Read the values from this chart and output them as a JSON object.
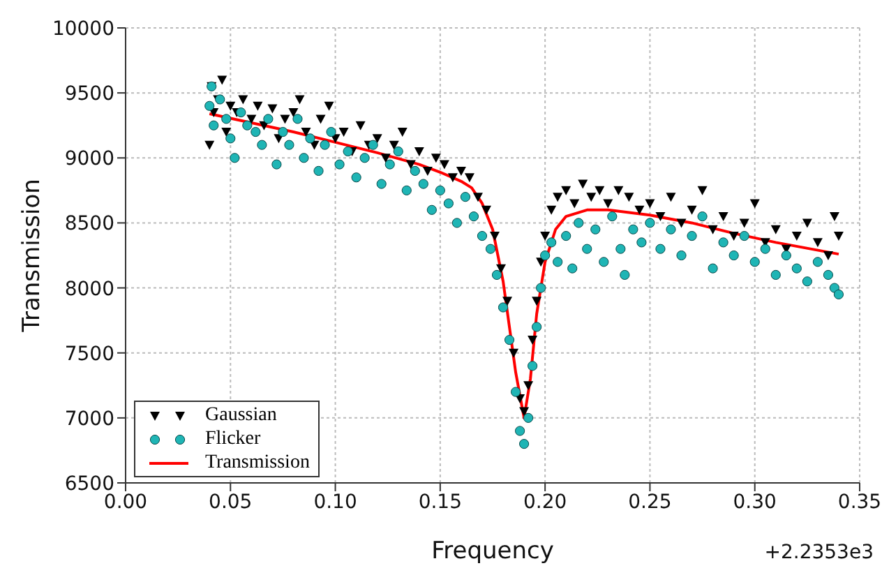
{
  "chart_data": {
    "type": "scatter",
    "xlabel": "Frequency",
    "ylabel": "Transmission",
    "annotations": [
      "+2.2353e3"
    ],
    "xlim": [
      0,
      0.35
    ],
    "xticks": [
      {
        "value": 0,
        "label": "0.00"
      },
      {
        "value": 0.05,
        "label": "0.05"
      },
      {
        "value": 0.1,
        "label": "0.10"
      },
      {
        "value": 0.15,
        "label": "0.15"
      },
      {
        "value": 0.2,
        "label": "0.20"
      },
      {
        "value": 0.25,
        "label": "0.25"
      },
      {
        "value": 0.3,
        "label": "0.30"
      },
      {
        "value": 0.35,
        "label": "0.35"
      }
    ],
    "ylim": [
      6500,
      10000
    ],
    "yticks": [
      6500,
      7000,
      7500,
      8000,
      8500,
      9000,
      9500,
      10000
    ],
    "grid": true,
    "legend": "bottom left",
    "series": [
      {
        "name": "Gaussian",
        "marker": "triangle",
        "color": "#000000",
        "x": [
          0.04,
          0.041,
          0.042,
          0.044,
          0.046,
          0.048,
          0.05,
          0.053,
          0.056,
          0.06,
          0.063,
          0.066,
          0.07,
          0.073,
          0.076,
          0.08,
          0.083,
          0.086,
          0.09,
          0.093,
          0.097,
          0.1,
          0.104,
          0.108,
          0.112,
          0.116,
          0.12,
          0.124,
          0.128,
          0.132,
          0.136,
          0.14,
          0.144,
          0.148,
          0.152,
          0.156,
          0.16,
          0.164,
          0.168,
          0.172,
          0.176,
          0.179,
          0.182,
          0.185,
          0.188,
          0.19,
          0.192,
          0.194,
          0.196,
          0.198,
          0.2,
          0.203,
          0.206,
          0.21,
          0.214,
          0.218,
          0.222,
          0.226,
          0.23,
          0.235,
          0.24,
          0.245,
          0.25,
          0.255,
          0.26,
          0.265,
          0.27,
          0.275,
          0.28,
          0.285,
          0.29,
          0.295,
          0.3,
          0.305,
          0.31,
          0.315,
          0.32,
          0.325,
          0.33,
          0.335,
          0.338,
          0.34
        ],
        "values": [
          9100,
          9550,
          9350,
          9450,
          9600,
          9200,
          9400,
          9350,
          9450,
          9300,
          9400,
          9250,
          9380,
          9150,
          9300,
          9350,
          9450,
          9200,
          9100,
          9300,
          9400,
          9150,
          9200,
          9050,
          9250,
          9100,
          9150,
          9000,
          9100,
          9200,
          8950,
          9050,
          8900,
          9000,
          8950,
          8850,
          8900,
          8850,
          8700,
          8600,
          8400,
          8150,
          7900,
          7500,
          7150,
          7050,
          7250,
          7600,
          7900,
          8200,
          8400,
          8600,
          8700,
          8750,
          8650,
          8800,
          8700,
          8750,
          8650,
          8750,
          8700,
          8600,
          8650,
          8550,
          8700,
          8500,
          8600,
          8750,
          8450,
          8550,
          8400,
          8500,
          8650,
          8350,
          8450,
          8300,
          8400,
          8500,
          8350,
          8250,
          8550,
          8400
        ]
      },
      {
        "name": "Flicker",
        "marker": "circle",
        "color": "#1fb5b5",
        "x": [
          0.04,
          0.041,
          0.042,
          0.045,
          0.048,
          0.05,
          0.052,
          0.055,
          0.058,
          0.062,
          0.065,
          0.068,
          0.072,
          0.075,
          0.078,
          0.082,
          0.085,
          0.088,
          0.092,
          0.095,
          0.098,
          0.102,
          0.106,
          0.11,
          0.114,
          0.118,
          0.122,
          0.126,
          0.13,
          0.134,
          0.138,
          0.142,
          0.146,
          0.15,
          0.154,
          0.158,
          0.162,
          0.166,
          0.17,
          0.174,
          0.177,
          0.18,
          0.183,
          0.186,
          0.188,
          0.19,
          0.192,
          0.194,
          0.196,
          0.198,
          0.2,
          0.203,
          0.206,
          0.21,
          0.213,
          0.216,
          0.22,
          0.224,
          0.228,
          0.232,
          0.236,
          0.238,
          0.242,
          0.246,
          0.25,
          0.255,
          0.26,
          0.265,
          0.27,
          0.275,
          0.28,
          0.285,
          0.29,
          0.295,
          0.3,
          0.305,
          0.31,
          0.315,
          0.32,
          0.325,
          0.33,
          0.335,
          0.338,
          0.34
        ],
        "values": [
          9400,
          9550,
          9250,
          9450,
          9300,
          9150,
          9000,
          9350,
          9250,
          9200,
          9100,
          9300,
          8950,
          9200,
          9100,
          9300,
          9000,
          9150,
          8900,
          9100,
          9200,
          8950,
          9050,
          8850,
          9000,
          9100,
          8800,
          8950,
          9050,
          8750,
          8900,
          8800,
          8600,
          8750,
          8650,
          8500,
          8700,
          8550,
          8400,
          8300,
          8100,
          7850,
          7600,
          7200,
          6900,
          6800,
          7000,
          7400,
          7700,
          8000,
          8250,
          8350,
          8200,
          8400,
          8150,
          8500,
          8300,
          8450,
          8200,
          8550,
          8300,
          8100,
          8450,
          8350,
          8500,
          8300,
          8450,
          8250,
          8400,
          8550,
          8150,
          8350,
          8250,
          8400,
          8200,
          8300,
          8100,
          8250,
          8150,
          8050,
          8200,
          8100,
          8000,
          7950
        ]
      },
      {
        "name": "Transmission",
        "type": "line",
        "line_style": "solid",
        "color": "#ff0000",
        "x": [
          0.04,
          0.06,
          0.08,
          0.1,
          0.12,
          0.14,
          0.15,
          0.16,
          0.165,
          0.17,
          0.175,
          0.18,
          0.183,
          0.186,
          0.19,
          0.193,
          0.196,
          0.2,
          0.205,
          0.21,
          0.22,
          0.23,
          0.25,
          0.27,
          0.29,
          0.31,
          0.34
        ],
        "values": [
          9340,
          9270,
          9200,
          9120,
          9040,
          8950,
          8890,
          8820,
          8770,
          8650,
          8450,
          8050,
          7700,
          7350,
          7000,
          7300,
          7800,
          8200,
          8450,
          8550,
          8600,
          8600,
          8560,
          8500,
          8420,
          8350,
          8260
        ]
      }
    ]
  }
}
